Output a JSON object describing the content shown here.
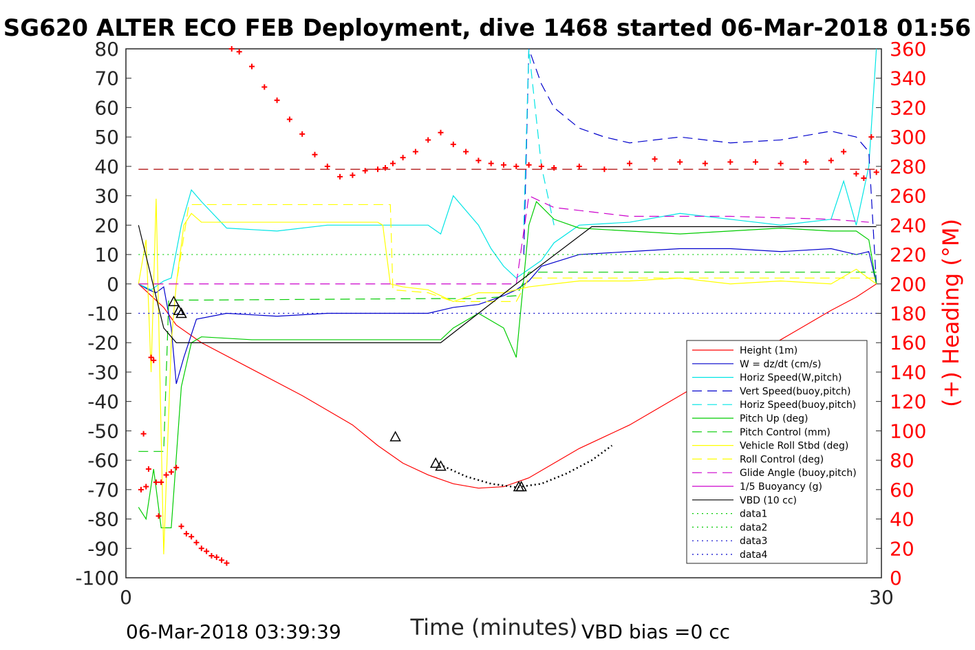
{
  "chart_data": {
    "type": "line",
    "title": "SG620 ALTER ECO FEB Deployment, dive 1468 started 06-Mar-2018 01:56",
    "xlabel": "Time (minutes)",
    "ylabel_right": "(+) Heading (°M)",
    "xlim": [
      0,
      30
    ],
    "ylim_left": [
      -100,
      80
    ],
    "ylim_right": [
      0,
      360
    ],
    "x_ticks": [
      "0",
      "30"
    ],
    "y_ticks_left": [
      "80",
      "70",
      "60",
      "50",
      "40",
      "30",
      "20",
      "10",
      "0",
      "-10",
      "-20",
      "-30",
      "-40",
      "-50",
      "-60",
      "-70",
      "-80",
      "-90",
      "-100"
    ],
    "y_ticks_right": [
      "360",
      "340",
      "320",
      "300",
      "280",
      "260",
      "240",
      "220",
      "200",
      "180",
      "160",
      "140",
      "120",
      "100",
      "80",
      "60",
      "40",
      "20",
      "0"
    ],
    "footer_left": "06-Mar-2018 03:39:39",
    "footer_right": "VBD bias =0 cc",
    "legend_position": "lower-right",
    "colors": {
      "red": "#ff0000",
      "blue": "#0000cc",
      "cyan": "#00e5e5",
      "green": "#00cc00",
      "yellow": "#ffff00",
      "magenta": "#cc00cc",
      "black": "#000000",
      "darkred": "#aa0000"
    },
    "legend": [
      {
        "label": "Height (1m)",
        "color": "#ff0000",
        "dash": "solid"
      },
      {
        "label": "W = dz/dt (cm/s)",
        "color": "#0000cc",
        "dash": "solid"
      },
      {
        "label": "Horiz Speed(W,pitch)",
        "color": "#00e5e5",
        "dash": "solid"
      },
      {
        "label": "Vert Speed(buoy,pitch)",
        "color": "#0000cc",
        "dash": "dashed"
      },
      {
        "label": "Horiz Speed(buoy,pitch)",
        "color": "#00e5e5",
        "dash": "dashed"
      },
      {
        "label": "Pitch Up (deg)",
        "color": "#00cc00",
        "dash": "solid"
      },
      {
        "label": "Pitch Control (mm)",
        "color": "#00cc00",
        "dash": "dashed"
      },
      {
        "label": "Vehicle Roll Stbd (deg)",
        "color": "#ffff00",
        "dash": "solid"
      },
      {
        "label": "Roll Control (deg)",
        "color": "#ffff00",
        "dash": "dashed"
      },
      {
        "label": "Glide Angle (buoy,pitch)",
        "color": "#cc00cc",
        "dash": "dashed"
      },
      {
        "label": "1/5 Buoyancy (g)",
        "color": "#cc00cc",
        "dash": "solid"
      },
      {
        "label": "VBD (10 cc)",
        "color": "#000000",
        "dash": "solid"
      },
      {
        "label": "data1",
        "color": "#00cc00",
        "dash": "dotted"
      },
      {
        "label": "data2",
        "color": "#00cc00",
        "dash": "dotted"
      },
      {
        "label": "data3",
        "color": "#0000cc",
        "dash": "dotted"
      },
      {
        "label": "data4",
        "color": "#0000cc",
        "dash": "dotted"
      }
    ],
    "series": [
      {
        "name": "Height (1m)",
        "color": "#ff0000",
        "dash": "solid",
        "x": [
          0.5,
          1.5,
          2.0,
          3.0,
          5.0,
          7.0,
          9.0,
          10.0,
          11.0,
          12.0,
          13.0,
          14.0,
          15.0,
          16.0,
          17.0,
          18.0,
          19.0,
          20.0,
          21.0,
          22.0,
          23.0,
          24.0,
          25.0,
          26.0,
          27.0,
          28.0,
          29.0,
          29.8
        ],
        "y": [
          0,
          -8,
          -14,
          -20,
          -29,
          -38,
          -48,
          -55,
          -61,
          -65,
          -68,
          -69.5,
          -69,
          -66,
          -61,
          -56,
          -52,
          -48,
          -43,
          -38,
          -33,
          -28.5,
          -24,
          -19,
          -14,
          -9,
          -4.5,
          0
        ]
      },
      {
        "name": "W = dz/dt (cm/s)",
        "color": "#0000cc",
        "dash": "solid",
        "x": [
          0.5,
          0.9,
          1.2,
          1.5,
          1.8,
          2.0,
          2.3,
          2.8,
          4.0,
          6.0,
          8.0,
          10.0,
          12.0,
          13.0,
          14.0,
          15.0,
          15.5,
          16.0,
          16.5,
          18.0,
          20.0,
          22.0,
          24.0,
          26.0,
          28.0,
          29.0,
          29.5,
          29.8
        ],
        "y": [
          0,
          -2,
          -3,
          -1,
          -15,
          -34,
          -25,
          -12,
          -10,
          -11,
          -10,
          -10,
          -10,
          -8,
          -7,
          -4,
          -2,
          1,
          6,
          10,
          11,
          12,
          12,
          11,
          12,
          10,
          11,
          0
        ]
      },
      {
        "name": "Horiz Speed(W,pitch)",
        "color": "#00e5e5",
        "dash": "solid",
        "x": [
          0.5,
          1.0,
          1.5,
          1.8,
          2.2,
          2.6,
          3.0,
          4.0,
          6.0,
          8.0,
          10.0,
          12.0,
          12.5,
          13.0,
          13.5,
          14.0,
          14.5,
          15.0,
          15.5,
          16.0,
          16.5,
          17.0,
          18.0,
          20.0,
          22.0,
          24.0,
          26.0,
          28.0,
          28.5,
          29.0,
          29.5,
          29.8
        ],
        "y": [
          0,
          -2,
          1,
          2,
          20,
          32,
          28,
          19,
          18,
          20,
          20,
          20,
          17,
          30,
          25,
          20,
          12,
          6,
          2,
          5,
          8,
          14,
          20,
          21,
          24,
          22,
          20,
          22,
          35,
          20,
          40,
          80
        ]
      },
      {
        "name": "Vert Speed(buoy,pitch)",
        "color": "#0000cc",
        "dash": "dashed",
        "x": [
          15.8,
          16.0,
          16.5,
          17.0,
          18.0,
          19.0,
          20.0,
          22.0,
          24.0,
          26.0,
          28.0,
          29.0,
          29.5,
          29.8
        ],
        "y": [
          10,
          80,
          68,
          60,
          53,
          50,
          48,
          50,
          48,
          49,
          52,
          50,
          45,
          0
        ]
      },
      {
        "name": "Horiz Speed(buoy,pitch)",
        "color": "#00e5e5",
        "dash": "dashed",
        "x": [
          15.8,
          16.0,
          16.5,
          17.0
        ],
        "y": [
          20,
          80,
          40,
          20
        ]
      },
      {
        "name": "Pitch Up (deg)",
        "color": "#00cc00",
        "dash": "solid",
        "x": [
          0.5,
          0.8,
          1.1,
          1.4,
          1.8,
          2.2,
          2.6,
          3.0,
          5.0,
          8.0,
          10.0,
          12.0,
          12.5,
          13.0,
          14.0,
          15.0,
          15.5,
          16.0,
          16.3,
          17.0,
          18.0,
          20.0,
          22.0,
          24.0,
          26.0,
          28.0,
          29.0,
          29.5,
          29.8
        ],
        "y": [
          -76,
          -80,
          -63,
          -83,
          -83,
          -35,
          -20,
          -18,
          -19,
          -19,
          -19,
          -19,
          -19,
          -15,
          -10,
          -15,
          -25,
          20,
          28,
          22,
          19,
          18,
          17,
          18,
          19,
          18,
          18,
          15,
          0
        ]
      },
      {
        "name": "Pitch Control (mm)",
        "color": "#00cc00",
        "dash": "dashed",
        "x": [
          0.5,
          1.5,
          1.7,
          2.0,
          3.0,
          12.0,
          14.0,
          15.5,
          16.0,
          17.0,
          29.8
        ],
        "y": [
          -57,
          -57,
          -5.5,
          -5.5,
          -5.5,
          -5,
          -5,
          -4,
          4,
          4,
          4
        ]
      },
      {
        "name": "Vehicle Roll Stbd (deg)",
        "color": "#ffff00",
        "dash": "solid",
        "x": [
          0.5,
          0.8,
          1.0,
          1.2,
          1.5,
          1.8,
          2.0,
          2.3,
          2.6,
          3.0,
          5.0,
          8.0,
          10.0,
          10.2,
          10.5,
          11.0,
          12.0,
          13.0,
          14.0,
          15.0,
          16.0,
          17.0,
          18.0,
          20.0,
          22.0,
          24.0,
          26.0,
          28.0,
          29.0,
          29.8
        ],
        "y": [
          0,
          15,
          -30,
          29,
          -92,
          -20,
          0,
          20,
          24,
          21,
          21,
          21,
          21,
          20,
          0,
          -1,
          -2,
          -6,
          -3,
          -3,
          -1,
          0,
          1,
          1,
          2,
          0,
          1,
          0,
          5,
          0
        ]
      },
      {
        "name": "Roll Control (deg)",
        "color": "#ffff00",
        "dash": "dashed",
        "x": [
          0.5,
          1.5,
          2.0,
          2.5,
          10.5,
          10.6,
          12.0,
          13.0,
          15.5,
          16.0,
          29.8
        ],
        "y": [
          0,
          0,
          0,
          27,
          27,
          -2,
          -3,
          -6,
          -6,
          2,
          2
        ]
      },
      {
        "name": "Glide Angle (buoy,pitch)",
        "color": "#cc00cc",
        "dash": "dashed",
        "x": [
          0.5,
          2.0,
          15.5,
          16.0,
          17.0,
          20.0,
          24.0,
          28.0,
          29.5
        ],
        "y": [
          0,
          0,
          0,
          30,
          26,
          23,
          23,
          22,
          21
        ]
      },
      {
        "name": "VBD (10 cc)",
        "color": "#000000",
        "dash": "solid",
        "x": [
          0.5,
          1.5,
          2.0,
          12.5,
          15.5,
          18.5,
          29.8
        ],
        "y": [
          20,
          -15,
          -20,
          -20,
          0,
          19.5,
          19.5
        ]
      },
      {
        "name": "data1",
        "color": "#00cc00",
        "dash": "dotted",
        "x": [
          0.5,
          29.8
        ],
        "y": [
          10,
          10
        ]
      },
      {
        "name": "data4",
        "color": "#0000cc",
        "dash": "dotted",
        "x": [
          0.5,
          29.8
        ],
        "y": [
          -10,
          -10
        ]
      },
      {
        "name": "Heading ref",
        "color": "#aa0000",
        "dash": "dashed",
        "x": [
          0.5,
          30
        ],
        "y": [
          39,
          39
        ]
      }
    ],
    "heading_points_deg": {
      "x": [
        0.6,
        0.7,
        0.8,
        0.9,
        1.0,
        1.1,
        1.2,
        1.3,
        1.4,
        1.6,
        1.8,
        2.0,
        2.2,
        2.4,
        2.6,
        2.8,
        3.0,
        3.2,
        3.4,
        3.6,
        3.8,
        4.0,
        4.2,
        4.5,
        5.0,
        5.5,
        6.0,
        6.5,
        7.0,
        7.5,
        8.0,
        8.5,
        9.0,
        9.5,
        10.0,
        10.3,
        10.6,
        11.0,
        11.5,
        12.0,
        12.5,
        13.0,
        13.5,
        14.0,
        14.5,
        15.0,
        15.5,
        16.0,
        16.5,
        17.0,
        18.0,
        19.0,
        20.0,
        21.0,
        22.0,
        23.0,
        24.0,
        25.0,
        26.0,
        27.0,
        28.0,
        28.5,
        29.0,
        29.3,
        29.6,
        29.8
      ],
      "y": [
        60,
        98,
        62,
        74,
        150,
        148,
        65,
        42,
        65,
        70,
        72,
        75,
        35,
        30,
        28,
        24,
        20,
        18,
        15,
        14,
        12,
        10,
        360,
        358,
        348,
        334,
        325,
        312,
        302,
        288,
        280,
        273,
        274,
        277,
        278,
        279,
        282,
        286,
        290,
        298,
        303,
        295,
        290,
        284,
        282,
        281,
        280,
        281,
        280,
        279,
        280,
        278,
        282,
        285,
        283,
        282,
        283,
        283,
        282,
        283,
        284,
        290,
        275,
        272,
        300,
        276
      ]
    },
    "markers": {
      "x": [
        1.9,
        2.1,
        2.2,
        10.7,
        12.3,
        12.5,
        15.6,
        15.7
      ],
      "y": [
        -6,
        -9,
        -10,
        -52,
        -61,
        -62,
        -69,
        -69
      ]
    },
    "dotted_segment": {
      "x": [
        12.6,
        13.5,
        14.5,
        15.5,
        16.5,
        17.5,
        18.5,
        19.3
      ],
      "y": [
        -62,
        -65.5,
        -68,
        -69.2,
        -68,
        -64.5,
        -60,
        -55
      ]
    }
  }
}
